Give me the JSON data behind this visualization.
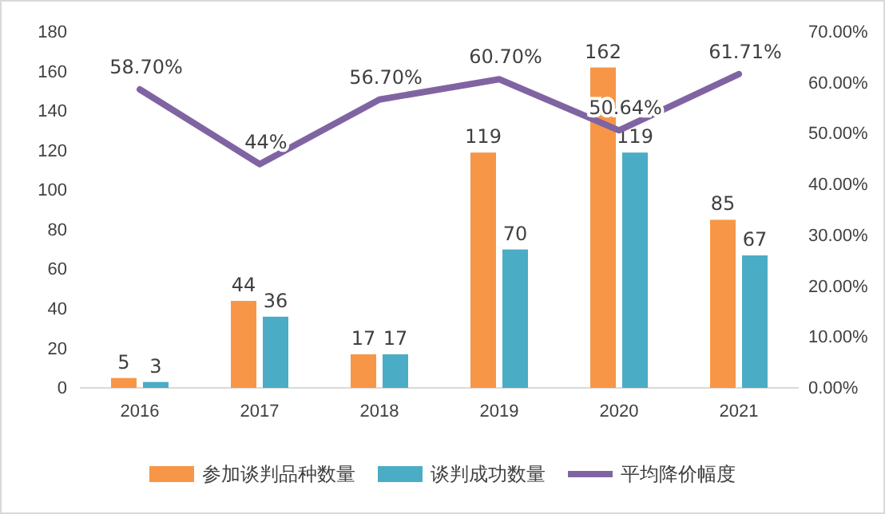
{
  "chart_data": {
    "type": "bar",
    "categories": [
      "2016",
      "2017",
      "2018",
      "2019",
      "2020",
      "2021"
    ],
    "series": [
      {
        "name": "参加谈判品种数量",
        "color": "#f79646",
        "values": [
          5,
          44,
          17,
          119,
          162,
          85
        ]
      },
      {
        "name": "谈判成功数量",
        "color": "#4bacc6",
        "values": [
          3,
          36,
          17,
          70,
          119,
          67
        ]
      },
      {
        "name": "平均降价幅度",
        "type": "line",
        "axis": "y2",
        "color": "#8064a2",
        "values": [
          58.7,
          44,
          56.7,
          60.7,
          50.64,
          61.71
        ],
        "value_labels": [
          "58.70%",
          "44%",
          "56.70%",
          "60.70%",
          "50.64%",
          "61.71%"
        ]
      }
    ],
    "ylim": [
      0,
      180
    ],
    "yticks": [
      0,
      20,
      40,
      60,
      80,
      100,
      120,
      140,
      160,
      180
    ],
    "y2lim": [
      0,
      70
    ],
    "y2ticks": [
      {
        "value": 0,
        "label": "0.00%"
      },
      {
        "value": 10,
        "label": "10.00%"
      },
      {
        "value": 20,
        "label": "20.00%"
      },
      {
        "value": 30,
        "label": "30.00%"
      },
      {
        "value": 40,
        "label": "40.00%"
      },
      {
        "value": 50,
        "label": "50.00%"
      },
      {
        "value": 60,
        "label": "60.00%"
      },
      {
        "value": 70,
        "label": "70.00%"
      }
    ],
    "data_labels": true,
    "legend": "bottom",
    "marker": "none",
    "line_style": "solid"
  }
}
